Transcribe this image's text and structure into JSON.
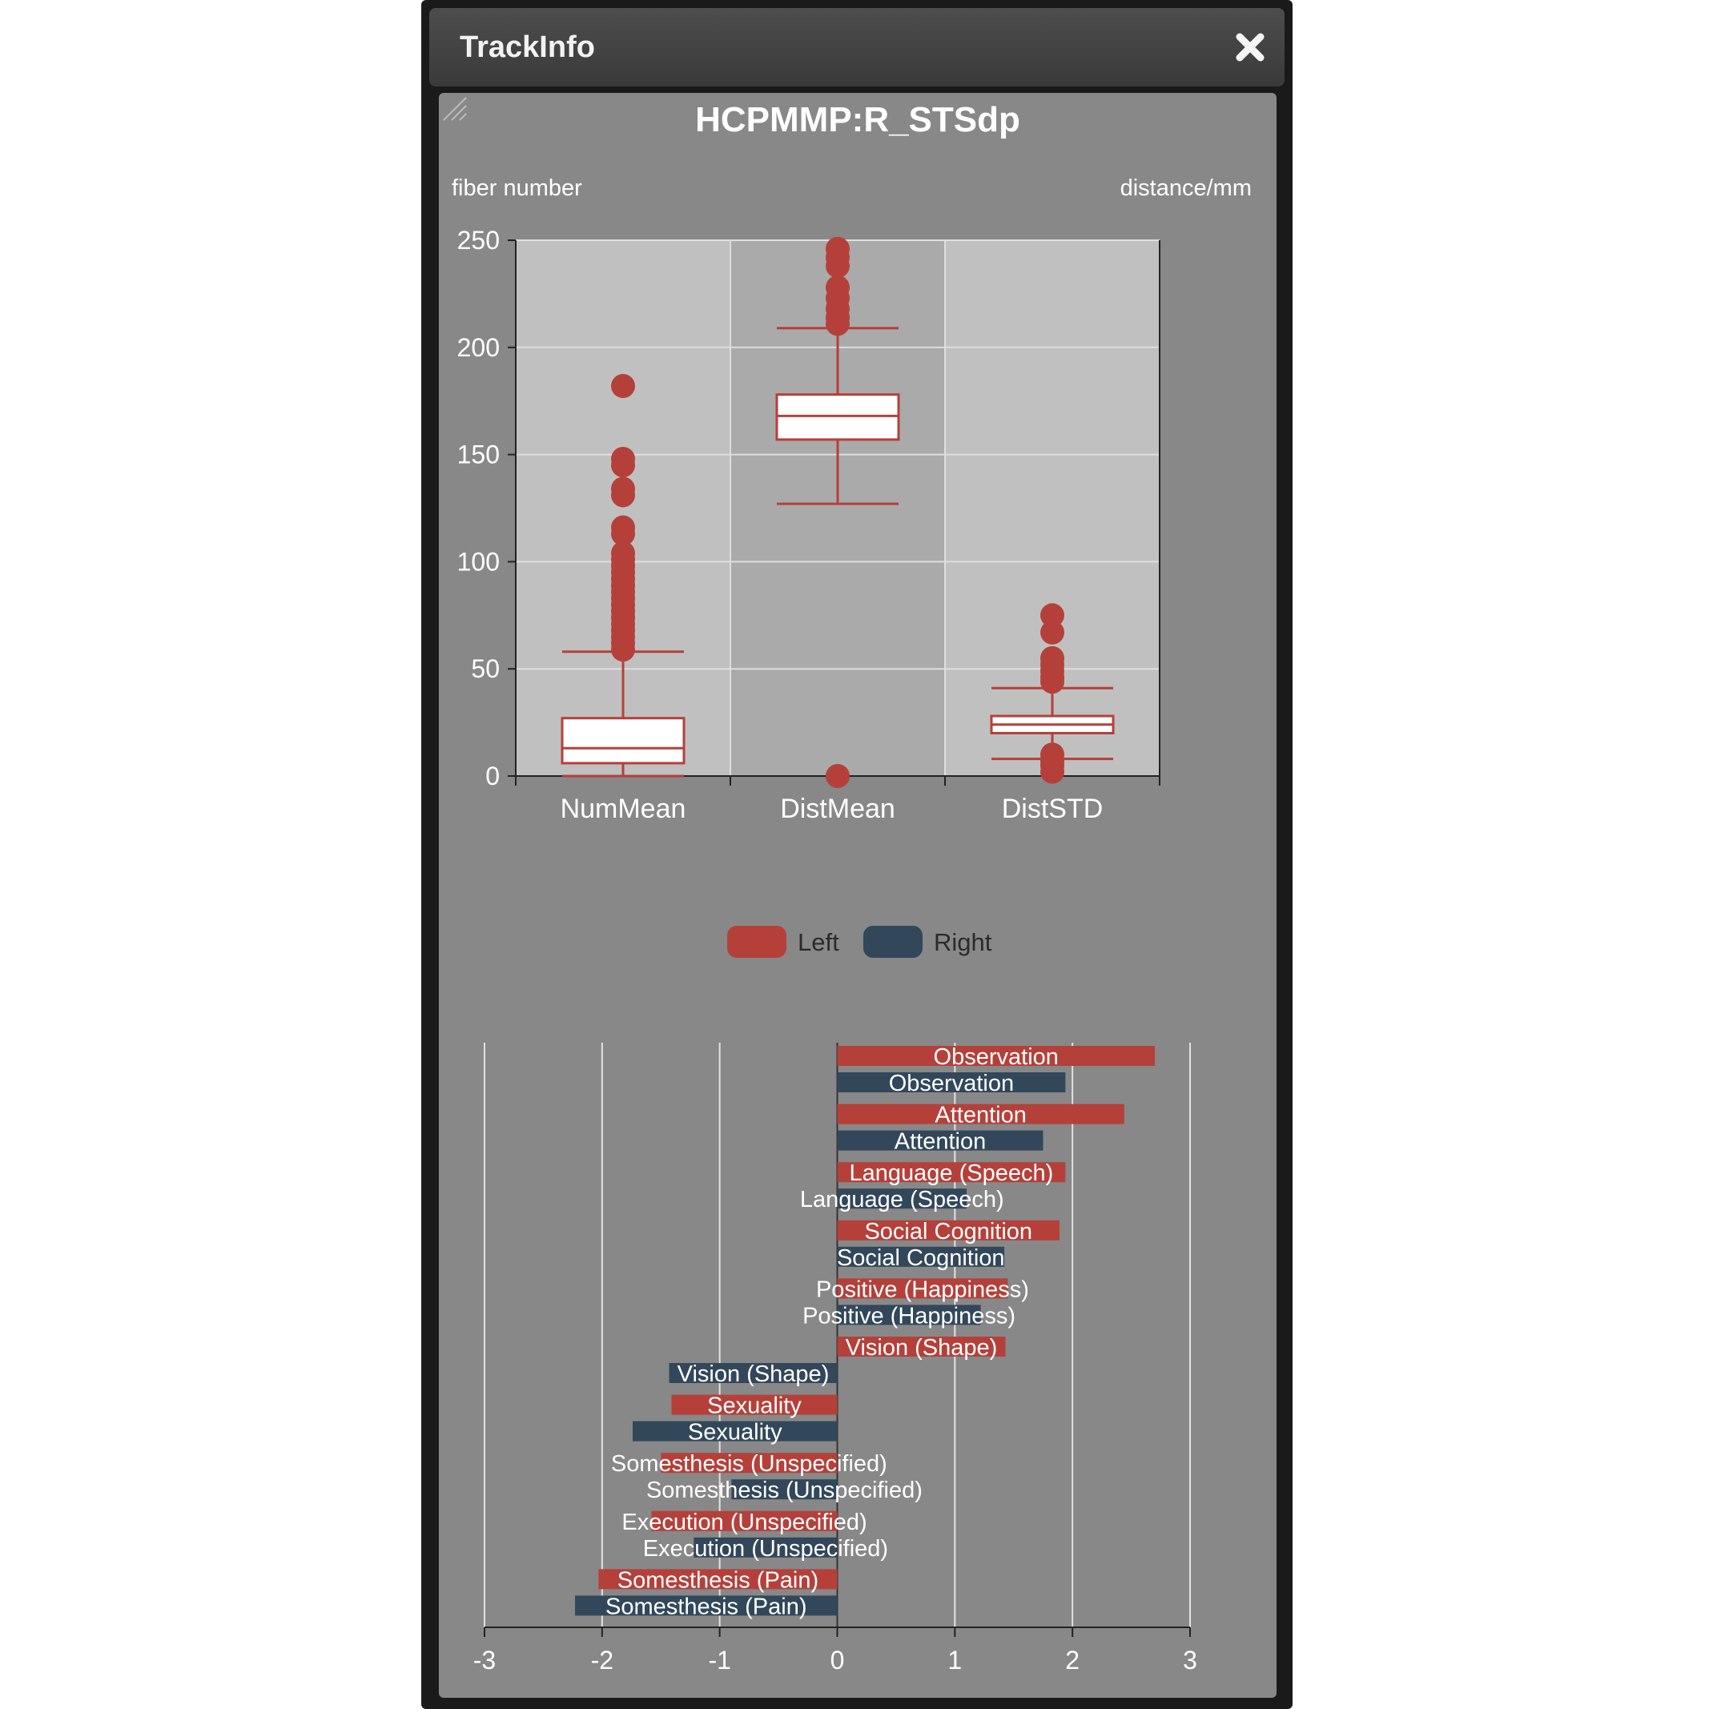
{
  "window": {
    "title": "TrackInfo",
    "close_icon": "close-icon"
  },
  "colors": {
    "left": "#b5403a",
    "right": "#32475a",
    "panel": "#888888",
    "plot_bg_a": "#c0c0c0",
    "plot_bg_b": "#aaaaaa"
  },
  "chart_data": [
    {
      "type": "box",
      "title": "HCPMMP:R_STSdp",
      "ylabel_left": "fiber number",
      "ylabel_right": "distance/mm",
      "ylim": [
        0,
        250
      ],
      "yticks": [
        "0",
        "50",
        "100",
        "150",
        "200",
        "250"
      ],
      "categories": [
        "NumMean",
        "DistMean",
        "DistSTD"
      ],
      "grid": true,
      "boxes": [
        {
          "min": 0,
          "q1": 6,
          "median": 13,
          "q3": 27,
          "max": 58,
          "outliers": [
            182,
            148,
            145,
            134,
            131,
            116,
            113,
            104,
            101,
            98,
            95,
            92,
            89,
            86,
            83,
            80,
            77,
            74,
            71,
            68,
            65,
            62,
            59
          ]
        },
        {
          "min": 127,
          "q1": 157,
          "median": 168,
          "q3": 178,
          "max": 209,
          "outliers": [
            246,
            242,
            238,
            228,
            223,
            218,
            214,
            211,
            0
          ]
        },
        {
          "min": 8,
          "q1": 20,
          "median": 24,
          "q3": 28,
          "max": 41,
          "outliers": [
            75,
            67,
            55,
            52,
            49,
            46,
            44,
            10,
            7,
            5,
            2
          ]
        }
      ],
      "legend": {
        "position": "bottom-center",
        "entries": [
          "Left",
          "Right"
        ]
      }
    },
    {
      "type": "bar",
      "orientation": "horizontal",
      "xlim": [
        -3,
        3
      ],
      "xticks": [
        "-3",
        "-2",
        "-1",
        "0",
        "1",
        "2",
        "3"
      ],
      "grid": true,
      "series": [
        {
          "name": "Left",
          "categories": [
            "Observation",
            "Attention",
            "Language (Speech)",
            "Social Cognition",
            "Positive (Happiness)",
            "Vision (Shape)",
            "Sexuality",
            "Somesthesis (Unspecified)",
            "Execution (Unspecified)",
            "Somesthesis (Pain)"
          ],
          "values": [
            2.7,
            2.44,
            1.94,
            1.89,
            1.45,
            1.43,
            -1.41,
            -1.5,
            -1.58,
            -2.03
          ]
        },
        {
          "name": "Right",
          "categories": [
            "Observation",
            "Attention",
            "Language (Speech)",
            "Social Cognition",
            "Positive (Happiness)",
            "Vision (Shape)",
            "Sexuality",
            "Somesthesis (Unspecified)",
            "Execution (Unspecified)",
            "Somesthesis (Pain)"
          ],
          "values": [
            1.94,
            1.75,
            1.1,
            1.42,
            1.22,
            -1.43,
            -1.74,
            -0.9,
            -1.22,
            -2.23
          ]
        }
      ]
    }
  ]
}
